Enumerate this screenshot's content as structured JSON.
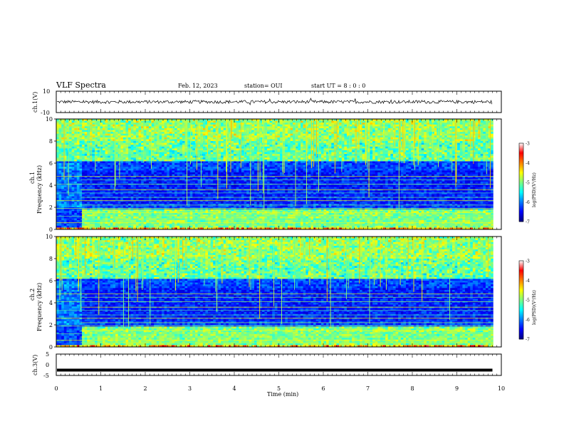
{
  "header": {
    "title": "VLF Spectra",
    "date": "Feb. 12, 2023",
    "station": "station= OUI",
    "start": "start  UT =   8 : 0  : 0"
  },
  "chart_data": [
    {
      "type": "line",
      "panel": "ch1-waveform",
      "ylabel": "ch.1(V)",
      "ylim": [
        -10,
        10
      ],
      "yticks": [
        "10",
        "-10"
      ],
      "x": [
        0,
        9.8
      ],
      "baseline": 0,
      "amplitude_typical": 1.5,
      "color": "#000000"
    },
    {
      "type": "heatmap",
      "panel": "ch1-spectrogram",
      "ylabel": "Frequency (kHz)",
      "channel_label": "ch.1",
      "ylim": [
        0,
        10
      ],
      "yticks": [
        "0",
        "2",
        "4",
        "6",
        "8",
        "10"
      ],
      "colorbar": {
        "label": "log(PSD)(V²/Hz)",
        "range": [
          -7,
          -3
        ],
        "ticks": [
          "-3",
          "-4",
          "-5",
          "-6",
          "-7"
        ]
      },
      "features": {
        "strong_band_khz": [
          0.2,
          1.8
        ],
        "onset_min": 0.55,
        "sferics": "vertical broadband impulses across record"
      }
    },
    {
      "type": "heatmap",
      "panel": "ch2-spectrogram",
      "ylabel": "Frequency (kHz)",
      "channel_label": "ch.2",
      "ylim": [
        0,
        10
      ],
      "yticks": [
        "0",
        "2",
        "4",
        "6",
        "8",
        "10"
      ],
      "colorbar": {
        "label": "log(PSD)(V²/Hz)",
        "range": [
          -7,
          -3
        ],
        "ticks": [
          "-3",
          "-4",
          "-5",
          "-6",
          "-7"
        ]
      },
      "features": {
        "strong_band_khz": [
          0.2,
          1.8
        ],
        "onset_min": 0.55,
        "sferics": "vertical broadband impulses across record"
      }
    },
    {
      "type": "line",
      "panel": "ch3-waveform",
      "ylabel": "ch.3(V)",
      "ylim": [
        -5,
        5
      ],
      "yticks": [
        "5",
        "0",
        "-5"
      ],
      "x": [
        0,
        9.8
      ],
      "level": -2.5,
      "color": "#000000"
    }
  ],
  "xaxis": {
    "label": "Time  (min)",
    "range": [
      0,
      10
    ],
    "ticks": [
      "0",
      "1",
      "2",
      "3",
      "4",
      "5",
      "6",
      "7",
      "8",
      "9",
      "10"
    ]
  },
  "colors": {
    "cmap": [
      "#00007f",
      "#0000ff",
      "#007fff",
      "#00ffff",
      "#7fff7f",
      "#ffff00",
      "#ff7f00",
      "#ff0000",
      "#ffffff"
    ]
  }
}
